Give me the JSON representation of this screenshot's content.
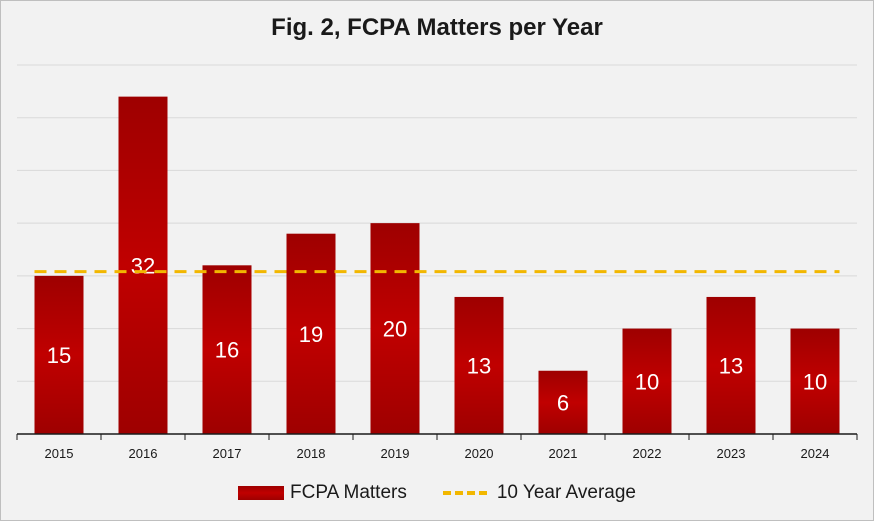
{
  "chart_data": {
    "type": "bar",
    "title": "Fig. 2, FCPA Matters per Year",
    "categories": [
      "2015",
      "2016",
      "2017",
      "2018",
      "2019",
      "2020",
      "2021",
      "2022",
      "2023",
      "2024"
    ],
    "series": [
      {
        "name": "FCPA Matters",
        "values": [
          15,
          32,
          16,
          19,
          20,
          13,
          6,
          10,
          13,
          10
        ],
        "color": "#c00000"
      },
      {
        "name": "10 Year Average",
        "type": "line",
        "style": "dashed",
        "value": 15.4,
        "color": "#f2b700"
      }
    ],
    "ylim": [
      0,
      35
    ],
    "grid": true,
    "legend": "bottom"
  }
}
